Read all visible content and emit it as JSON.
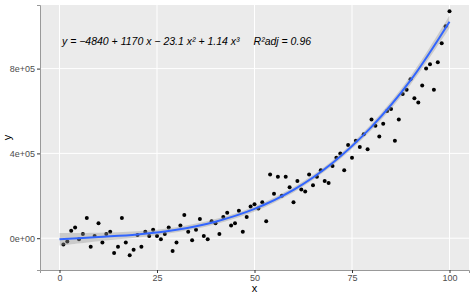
{
  "chart_data": {
    "type": "scatter",
    "x_label": "x",
    "y_label": "y",
    "annotations": [
      "y = −4840 + 1170 x − 23.1 x² + 1.14 x³",
      "R²adj = 0.96"
    ],
    "xlim": [
      -5,
      105
    ],
    "xticks": [
      0,
      25,
      50,
      75,
      100
    ],
    "ylim": [
      -150000,
      1100000
    ],
    "yticks": [
      {
        "value": 0,
        "label": "0e+00"
      },
      {
        "value": 400000,
        "label": "4e+05"
      },
      {
        "value": 800000,
        "label": "8e+05"
      }
    ],
    "grid": true,
    "series": [
      {
        "type": "scatter",
        "color": "#000000",
        "marker": "circle",
        "x": [
          1,
          2,
          3,
          4,
          5,
          6,
          7,
          8,
          9,
          10,
          11,
          12,
          13,
          14,
          15,
          16,
          17,
          18,
          19,
          20,
          21,
          22,
          23,
          24,
          25,
          26,
          27,
          28,
          29,
          30,
          31,
          32,
          33,
          34,
          35,
          36,
          37,
          38,
          39,
          40,
          41,
          42,
          43,
          44,
          45,
          46,
          47,
          48,
          49,
          50,
          51,
          52,
          53,
          54,
          55,
          56,
          57,
          58,
          59,
          60,
          61,
          62,
          63,
          64,
          65,
          66,
          67,
          68,
          69,
          70,
          71,
          72,
          73,
          74,
          75,
          76,
          77,
          78,
          79,
          80,
          81,
          82,
          83,
          84,
          85,
          86,
          87,
          88,
          89,
          90,
          91,
          92,
          93,
          94,
          95,
          96,
          97,
          98,
          99,
          100
        ],
        "values": [
          -30000,
          -15000,
          35000,
          50000,
          -5000,
          20000,
          95000,
          -40000,
          10000,
          70000,
          -20000,
          20000,
          30000,
          -70000,
          -40000,
          95000,
          -20000,
          -80000,
          -55000,
          15000,
          -40000,
          30000,
          10000,
          40000,
          10000,
          -5000,
          20000,
          50000,
          -60000,
          -20000,
          60000,
          110000,
          30000,
          -10000,
          40000,
          90000,
          10000,
          -5000,
          80000,
          70000,
          20000,
          100000,
          120000,
          60000,
          70000,
          130000,
          30000,
          100000,
          150000,
          160000,
          140000,
          170000,
          80000,
          300000,
          210000,
          290000,
          200000,
          290000,
          240000,
          170000,
          270000,
          230000,
          220000,
          300000,
          250000,
          290000,
          320000,
          270000,
          260000,
          340000,
          380000,
          400000,
          320000,
          440000,
          380000,
          460000,
          430000,
          490000,
          420000,
          560000,
          530000,
          480000,
          540000,
          600000,
          610000,
          460000,
          560000,
          680000,
          700000,
          750000,
          660000,
          640000,
          720000,
          800000,
          820000,
          700000,
          830000,
          920000,
          1000000,
          1070000
        ]
      },
      {
        "type": "line",
        "color": "#3366FF",
        "line_style": "solid",
        "x": [
          0,
          10,
          20,
          30,
          40,
          50,
          60,
          70,
          80,
          90,
          100
        ],
        "values": [
          -5000,
          6000,
          18000,
          40000,
          78000,
          138000,
          228000,
          355000,
          525000,
          744000,
          1021000
        ],
        "lower": [
          -35000,
          -14000,
          3000,
          28000,
          66000,
          126000,
          216000,
          343000,
          510000,
          724000,
          991000
        ],
        "upper": [
          25000,
          26000,
          33000,
          52000,
          90000,
          150000,
          240000,
          367000,
          540000,
          764000,
          1051000
        ]
      }
    ]
  }
}
